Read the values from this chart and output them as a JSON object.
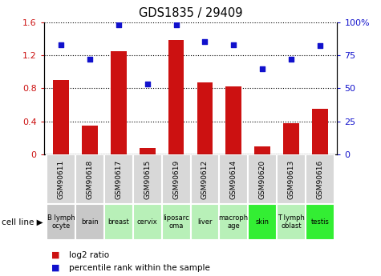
{
  "title": "GDS1835 / 29409",
  "gsm_labels": [
    "GSM90611",
    "GSM90618",
    "GSM90617",
    "GSM90615",
    "GSM90619",
    "GSM90612",
    "GSM90614",
    "GSM90620",
    "GSM90613",
    "GSM90616"
  ],
  "cell_lines": [
    "B lymph\nocyte",
    "brain",
    "breast",
    "cervix",
    "liposarc\noma",
    "liver",
    "macroph\nage",
    "skin",
    "T lymph\noblast",
    "testis"
  ],
  "log2_ratio": [
    0.9,
    0.35,
    1.25,
    0.08,
    1.38,
    0.87,
    0.82,
    0.1,
    0.38,
    0.55
  ],
  "percentile_rank": [
    83,
    72,
    98,
    53,
    98,
    85,
    83,
    65,
    72,
    82
  ],
  "bar_color": "#cc1111",
  "dot_color": "#1111cc",
  "ylim_left": [
    0,
    1.6
  ],
  "ylim_right": [
    0,
    100
  ],
  "yticks_left": [
    0,
    0.4,
    0.8,
    1.2,
    1.6
  ],
  "ytick_labels_left": [
    "0",
    "0.4",
    "0.8",
    "1.2",
    "1.6"
  ],
  "yticks_right": [
    0,
    25,
    50,
    75,
    100
  ],
  "ytick_labels_right": [
    "0",
    "25",
    "50",
    "75",
    "100%"
  ],
  "cell_colors": [
    "#c8c8c8",
    "#c8c8c8",
    "#b8f0b8",
    "#b8f0b8",
    "#b8f0b8",
    "#b8f0b8",
    "#b8f0b8",
    "#33ee33",
    "#b8f0b8",
    "#33ee33"
  ],
  "gsm_bg_color": "#d8d8d8",
  "legend_items": [
    {
      "color": "#cc1111",
      "label": "log2 ratio"
    },
    {
      "color": "#1111cc",
      "label": "percentile rank within the sample"
    }
  ]
}
